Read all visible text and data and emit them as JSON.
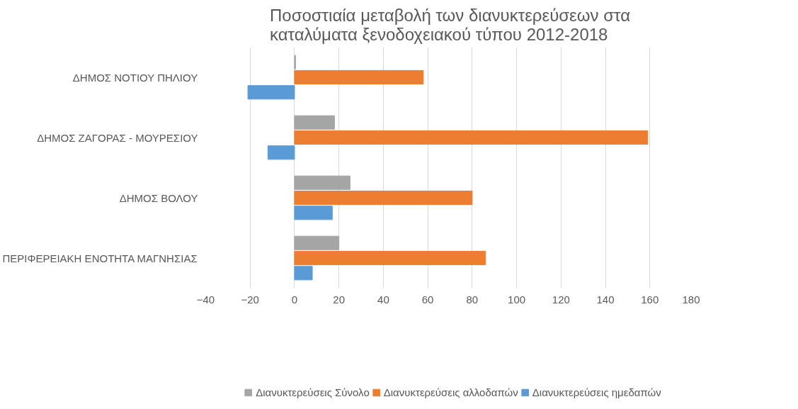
{
  "chart_data": {
    "type": "bar",
    "orientation": "horizontal",
    "title": "Ποσοστιαία μεταβολή των διανυκτερεύσεων στα\nκαταλύματα ξενοδοχειακού τύπου 2012-2018",
    "categories": [
      "ΔΗΜΟΣ ΝΟΤΙΟΥ ΠΗΛΙΟΥ",
      "ΔΗΜΟΣ ΖΑΓΟΡΑΣ - ΜΟΥΡΕΣΙΟΥ",
      "ΔΗΜΟΣ ΒΟΛΟΥ",
      "ΠΕΡΙΦΕΡΕΙΑΚΗ ΕΝΟΤΗΤΑ ΜΑΓΝΗΣΙΑΣ"
    ],
    "series": [
      {
        "name": "Διανυκτερεύσεις Σύνολο",
        "color": "#a5a5a5",
        "values": [
          0.5,
          18,
          25,
          20
        ]
      },
      {
        "name": "Διανυκτερεύσεις αλλοδαπών",
        "color": "#ed7d31",
        "values": [
          58,
          159,
          80,
          86
        ]
      },
      {
        "name": "Διανυκτερεύσεις ημεδαπών",
        "color": "#5b9bd5",
        "values": [
          -21,
          -12,
          17,
          8
        ]
      }
    ],
    "xlim": [
      -40,
      180
    ],
    "xticks": [
      -40,
      -20,
      0,
      20,
      40,
      60,
      80,
      100,
      120,
      140,
      160,
      180
    ],
    "grid": "x",
    "legend": "bottom"
  }
}
